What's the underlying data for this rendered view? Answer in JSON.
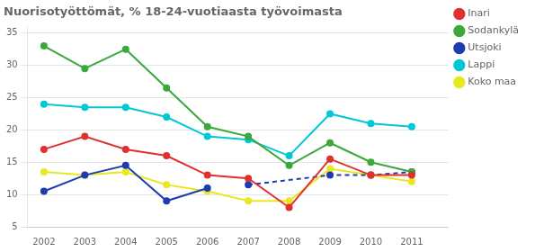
{
  "chart_data": {
    "type": "line",
    "title": "Nuorisotyöttömät, % 18-24-vuotiaasta työvoimasta",
    "x": [
      2002,
      2003,
      2004,
      2005,
      2006,
      2007,
      2008,
      2009,
      2010,
      2011
    ],
    "xlim": [
      2001.6,
      2011.9
    ],
    "xticks": [
      2002,
      2003,
      2004,
      2005,
      2006,
      2007,
      2008,
      2009,
      2010,
      2011
    ],
    "ylim": [
      5,
      36
    ],
    "yticks": [
      5,
      10,
      15,
      20,
      25,
      30,
      35
    ],
    "grid": "y",
    "legend": "right",
    "marker": "circle",
    "series": [
      {
        "name": "Inari",
        "color": "#e03030",
        "line_style": "solid",
        "values": [
          17.0,
          19.0,
          17.0,
          16.0,
          13.0,
          12.5,
          8.0,
          15.5,
          13.0,
          13.0
        ]
      },
      {
        "name": "Sodankylä",
        "color": "#3ba83b",
        "line_style": "solid",
        "values": [
          33.0,
          29.5,
          32.5,
          26.5,
          20.5,
          19.0,
          14.5,
          18.0,
          15.0,
          13.5
        ]
      },
      {
        "name": "Utsjoki",
        "color": "#1e3cb0",
        "line_style": "solid",
        "x": [
          2002,
          2003,
          2004,
          2005,
          2006
        ],
        "values": [
          10.5,
          13.0,
          14.5,
          9.0,
          11.0
        ]
      },
      {
        "name": "Utsjoki",
        "color": "#1e3cb0",
        "line_style": "dashed",
        "x": [
          2007,
          2009,
          2010,
          2011
        ],
        "values": [
          11.5,
          13.0,
          13.0,
          13.5
        ]
      },
      {
        "name": "Lappi",
        "color": "#00c8d4",
        "line_style": "solid",
        "values": [
          24.0,
          23.5,
          23.5,
          22.0,
          19.0,
          18.5,
          16.0,
          22.5,
          21.0,
          20.5
        ]
      },
      {
        "name": "Koko maa",
        "color": "#e8e820",
        "line_style": "solid",
        "values": [
          13.5,
          13.0,
          13.5,
          11.5,
          10.5,
          9.0,
          9.0,
          14.0,
          13.0,
          12.0
        ]
      }
    ]
  }
}
